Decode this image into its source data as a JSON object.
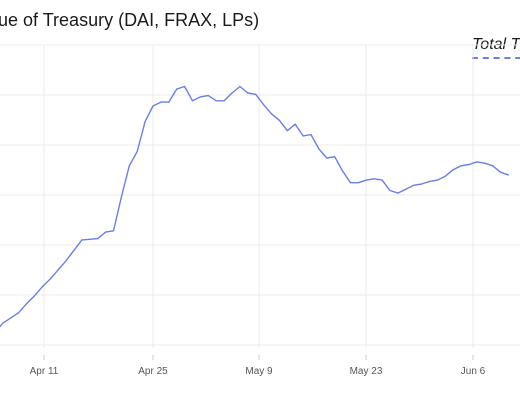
{
  "chart_data": {
    "type": "line",
    "title": "alue of Treasury (DAI, FRAX, LPs)",
    "xlabel": "",
    "ylabel": "",
    "x_tick_labels": [
      "Apr 11",
      "Apr 25",
      "May 9",
      "May 23",
      "Jun 6"
    ],
    "grid": true,
    "legend_position": "top-right",
    "color": "#6b7fe3",
    "series": [
      {
        "name": "Total T",
        "x": [
          0,
          1,
          2,
          3,
          4,
          5,
          6,
          7,
          8,
          9,
          10,
          11,
          12,
          13,
          14,
          15,
          16,
          17,
          18,
          19,
          20,
          21,
          22,
          23,
          24,
          25,
          26,
          27,
          28,
          29,
          30,
          31,
          32,
          33,
          34,
          35,
          36,
          37,
          38,
          39,
          40,
          41,
          42,
          43,
          44,
          45,
          46,
          47,
          48,
          49,
          50,
          51,
          52,
          53,
          54,
          55,
          56,
          57,
          58,
          59,
          60,
          61,
          62,
          63,
          64,
          65
        ],
        "values": [
          6,
          13,
          17,
          21,
          28,
          34,
          41,
          47,
          54,
          61,
          69,
          77,
          77.5,
          78,
          83,
          84,
          110,
          134,
          145,
          168,
          180,
          183,
          183,
          193,
          195,
          184,
          187,
          188,
          184,
          184,
          190,
          195,
          190,
          189,
          181,
          174,
          169,
          161,
          166,
          157,
          158,
          147,
          140,
          141,
          130,
          121,
          121,
          123,
          124,
          123,
          115,
          113,
          116,
          119,
          120,
          122,
          123,
          126,
          131,
          134,
          135,
          137,
          136,
          134,
          129,
          127
        ]
      }
    ]
  }
}
